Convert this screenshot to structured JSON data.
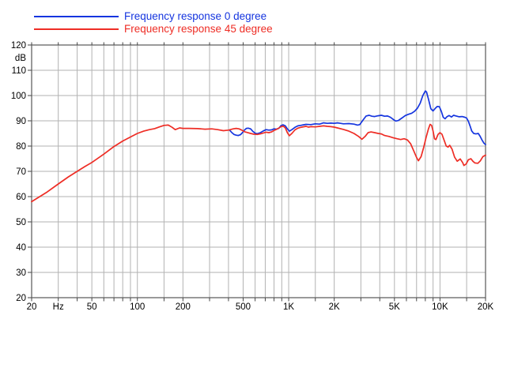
{
  "legend": {
    "items": [
      {
        "label": "Frequency response 0 degree",
        "color": "#1535df"
      },
      {
        "label": "Frequency response 45 degree",
        "color": "#ee2d25"
      }
    ]
  },
  "colors": {
    "background": "#ffffff",
    "grid": "#b2b2b2",
    "frame": "#6f6f6f",
    "tick": "#444444",
    "text": "#000000",
    "series_blue": "#1535df",
    "series_red": "#ee2d25"
  },
  "chart_data": {
    "type": "line",
    "title": "",
    "xlabel": "Hz",
    "ylabel": "dB",
    "x_axis": {
      "scale": "log",
      "min_hz": 20,
      "max_hz": 20000,
      "gridline_hz": [
        20,
        30,
        40,
        50,
        60,
        70,
        80,
        90,
        100,
        150,
        200,
        300,
        400,
        500,
        600,
        700,
        800,
        900,
        1000,
        1500,
        2000,
        3000,
        4000,
        5000,
        6000,
        7000,
        8000,
        9000,
        10000,
        15000,
        20000
      ],
      "tick_labels": [
        {
          "hz": 20,
          "label": "20"
        },
        {
          "hz": 30,
          "label": "Hz"
        },
        {
          "hz": 50,
          "label": "50"
        },
        {
          "hz": 100,
          "label": "100"
        },
        {
          "hz": 200,
          "label": "200"
        },
        {
          "hz": 500,
          "label": "500"
        },
        {
          "hz": 1000,
          "label": "1K"
        },
        {
          "hz": 2000,
          "label": "2K"
        },
        {
          "hz": 5000,
          "label": "5K"
        },
        {
          "hz": 10000,
          "label": "10K"
        },
        {
          "hz": 20000,
          "label": "20K"
        }
      ]
    },
    "y_axis": {
      "min_db": 20,
      "max_db": 120,
      "step_db": 10,
      "labels": [
        {
          "db": 120,
          "label": "120"
        },
        {
          "db": 115,
          "label": "dB"
        },
        {
          "db": 110,
          "label": "110"
        },
        {
          "db": 100,
          "label": "100"
        },
        {
          "db": 90,
          "label": "90"
        },
        {
          "db": 80,
          "label": "80"
        },
        {
          "db": 70,
          "label": "70"
        },
        {
          "db": 60,
          "label": "60"
        },
        {
          "db": 50,
          "label": "50"
        },
        {
          "db": 40,
          "label": "40"
        },
        {
          "db": 30,
          "label": "30"
        },
        {
          "db": 20,
          "label": "20"
        }
      ]
    },
    "series": [
      {
        "name": "Frequency response 0 degree",
        "color": "#1535df",
        "points": [
          [
            408,
            86.2
          ],
          [
            420,
            85.4
          ],
          [
            435,
            84.6
          ],
          [
            450,
            84.3
          ],
          [
            465,
            84.2
          ],
          [
            480,
            84.5
          ],
          [
            495,
            85.3
          ],
          [
            510,
            86.3
          ],
          [
            525,
            87.0
          ],
          [
            540,
            87.1
          ],
          [
            560,
            86.8
          ],
          [
            580,
            85.8
          ],
          [
            600,
            85.1
          ],
          [
            620,
            84.9
          ],
          [
            650,
            85.3
          ],
          [
            680,
            86.0
          ],
          [
            710,
            86.5
          ],
          [
            740,
            86.3
          ],
          [
            770,
            86.4
          ],
          [
            800,
            86.8
          ],
          [
            830,
            86.7
          ],
          [
            860,
            87.0
          ],
          [
            890,
            88.1
          ],
          [
            920,
            88.4
          ],
          [
            950,
            88.0
          ],
          [
            980,
            86.8
          ],
          [
            1010,
            85.9
          ],
          [
            1050,
            86.5
          ],
          [
            1100,
            87.4
          ],
          [
            1150,
            88.0
          ],
          [
            1200,
            88.2
          ],
          [
            1300,
            88.6
          ],
          [
            1400,
            88.5
          ],
          [
            1500,
            88.8
          ],
          [
            1600,
            88.7
          ],
          [
            1700,
            89.2
          ],
          [
            1800,
            89.0
          ],
          [
            1900,
            89.1
          ],
          [
            2000,
            89.0
          ],
          [
            2100,
            89.2
          ],
          [
            2200,
            89.0
          ],
          [
            2300,
            88.8
          ],
          [
            2500,
            88.9
          ],
          [
            2700,
            88.7
          ],
          [
            2850,
            88.3
          ],
          [
            2950,
            88.5
          ],
          [
            3100,
            90.3
          ],
          [
            3250,
            91.9
          ],
          [
            3400,
            92.2
          ],
          [
            3550,
            91.8
          ],
          [
            3700,
            91.7
          ],
          [
            3900,
            92.0
          ],
          [
            4100,
            92.2
          ],
          [
            4300,
            91.8
          ],
          [
            4500,
            91.9
          ],
          [
            4700,
            91.4
          ],
          [
            4900,
            90.6
          ],
          [
            5100,
            89.9
          ],
          [
            5300,
            90.1
          ],
          [
            5600,
            91.1
          ],
          [
            5900,
            92.1
          ],
          [
            6200,
            92.6
          ],
          [
            6500,
            93.0
          ],
          [
            6800,
            93.8
          ],
          [
            7100,
            95.0
          ],
          [
            7400,
            97.0
          ],
          [
            7700,
            100.0
          ],
          [
            8000,
            101.8
          ],
          [
            8150,
            101.4
          ],
          [
            8400,
            98.5
          ],
          [
            8700,
            94.8
          ],
          [
            9000,
            93.9
          ],
          [
            9300,
            94.9
          ],
          [
            9600,
            95.7
          ],
          [
            9900,
            95.6
          ],
          [
            10200,
            93.8
          ],
          [
            10500,
            91.4
          ],
          [
            10800,
            90.8
          ],
          [
            11100,
            91.6
          ],
          [
            11500,
            92.1
          ],
          [
            11900,
            91.5
          ],
          [
            12300,
            92.2
          ],
          [
            12800,
            91.9
          ],
          [
            13400,
            91.6
          ],
          [
            14000,
            91.7
          ],
          [
            14600,
            91.4
          ],
          [
            15000,
            91.1
          ],
          [
            15400,
            89.8
          ],
          [
            15800,
            88.0
          ],
          [
            16200,
            86.0
          ],
          [
            16700,
            85.0
          ],
          [
            17300,
            84.8
          ],
          [
            17900,
            85.0
          ],
          [
            18400,
            83.9
          ],
          [
            19000,
            82.3
          ],
          [
            19500,
            81.2
          ],
          [
            20000,
            80.6
          ]
        ]
      },
      {
        "name": "Frequency response 45 degree",
        "color": "#ee2d25",
        "points": [
          [
            20,
            58.0
          ],
          [
            25,
            61.6
          ],
          [
            30,
            65.0
          ],
          [
            35,
            67.8
          ],
          [
            40,
            70.0
          ],
          [
            45,
            71.9
          ],
          [
            50,
            73.5
          ],
          [
            60,
            76.8
          ],
          [
            70,
            79.8
          ],
          [
            80,
            82.0
          ],
          [
            90,
            83.6
          ],
          [
            100,
            85.0
          ],
          [
            110,
            85.9
          ],
          [
            120,
            86.5
          ],
          [
            130,
            86.9
          ],
          [
            140,
            87.6
          ],
          [
            150,
            88.2
          ],
          [
            160,
            88.3
          ],
          [
            170,
            87.4
          ],
          [
            178,
            86.5
          ],
          [
            190,
            87.2
          ],
          [
            200,
            87.0
          ],
          [
            220,
            87.0
          ],
          [
            250,
            86.9
          ],
          [
            280,
            86.7
          ],
          [
            310,
            86.8
          ],
          [
            340,
            86.5
          ],
          [
            370,
            86.1
          ],
          [
            400,
            86.3
          ],
          [
            430,
            86.8
          ],
          [
            450,
            87.0
          ],
          [
            470,
            86.8
          ],
          [
            490,
            86.3
          ],
          [
            510,
            85.7
          ],
          [
            530,
            85.4
          ],
          [
            560,
            85.0
          ],
          [
            590,
            84.7
          ],
          [
            620,
            84.6
          ],
          [
            650,
            84.8
          ],
          [
            680,
            85.2
          ],
          [
            710,
            85.5
          ],
          [
            740,
            85.3
          ],
          [
            770,
            85.6
          ],
          [
            800,
            86.2
          ],
          [
            830,
            86.6
          ],
          [
            860,
            87.1
          ],
          [
            890,
            87.7
          ],
          [
            920,
            87.9
          ],
          [
            950,
            87.2
          ],
          [
            980,
            85.3
          ],
          [
            1010,
            84.1
          ],
          [
            1050,
            85.0
          ],
          [
            1100,
            86.4
          ],
          [
            1150,
            87.1
          ],
          [
            1200,
            87.4
          ],
          [
            1300,
            87.8
          ],
          [
            1350,
            87.5
          ],
          [
            1400,
            87.7
          ],
          [
            1500,
            87.6
          ],
          [
            1600,
            87.8
          ],
          [
            1700,
            88.0
          ],
          [
            1800,
            87.8
          ],
          [
            1900,
            87.7
          ],
          [
            2000,
            87.5
          ],
          [
            2100,
            87.2
          ],
          [
            2300,
            86.6
          ],
          [
            2500,
            85.9
          ],
          [
            2700,
            85.0
          ],
          [
            2900,
            83.8
          ],
          [
            3050,
            82.7
          ],
          [
            3200,
            83.8
          ],
          [
            3350,
            85.3
          ],
          [
            3500,
            85.6
          ],
          [
            3700,
            85.3
          ],
          [
            3900,
            85.0
          ],
          [
            4100,
            84.8
          ],
          [
            4300,
            84.2
          ],
          [
            4600,
            83.8
          ],
          [
            4900,
            83.3
          ],
          [
            5200,
            82.9
          ],
          [
            5500,
            82.6
          ],
          [
            5800,
            82.9
          ],
          [
            6100,
            82.4
          ],
          [
            6400,
            80.9
          ],
          [
            6700,
            78.2
          ],
          [
            7000,
            75.5
          ],
          [
            7200,
            74.2
          ],
          [
            7500,
            75.8
          ],
          [
            7800,
            79.5
          ],
          [
            8100,
            83.5
          ],
          [
            8400,
            86.9
          ],
          [
            8600,
            88.6
          ],
          [
            8800,
            88.2
          ],
          [
            9000,
            86.0
          ],
          [
            9200,
            82.9
          ],
          [
            9400,
            82.6
          ],
          [
            9700,
            84.6
          ],
          [
            10000,
            85.3
          ],
          [
            10300,
            84.7
          ],
          [
            10700,
            82.0
          ],
          [
            11000,
            80.0
          ],
          [
            11300,
            79.6
          ],
          [
            11600,
            80.3
          ],
          [
            12000,
            78.8
          ],
          [
            12500,
            75.6
          ],
          [
            13000,
            74.0
          ],
          [
            13600,
            74.9
          ],
          [
            14100,
            73.5
          ],
          [
            14400,
            72.3
          ],
          [
            14900,
            72.9
          ],
          [
            15400,
            74.6
          ],
          [
            16000,
            75.0
          ],
          [
            16500,
            74.0
          ],
          [
            17000,
            73.3
          ],
          [
            17800,
            73.2
          ],
          [
            18500,
            74.2
          ],
          [
            19200,
            75.8
          ],
          [
            20000,
            76.4
          ]
        ]
      }
    ]
  }
}
